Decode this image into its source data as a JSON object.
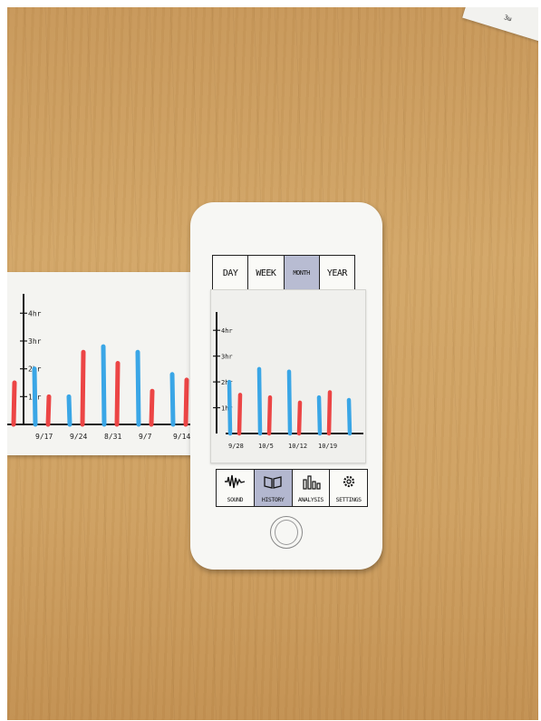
{
  "colors": {
    "series_a": "#3aa6e6",
    "series_b": "#ec4545",
    "ink": "#1a1a1a"
  },
  "corner_scrap": {
    "text": "3ω"
  },
  "phone": {
    "tabs": [
      {
        "label": "DAY",
        "active": false
      },
      {
        "label": "WEEK",
        "active": false
      },
      {
        "label": "MONTH",
        "active": true
      },
      {
        "label": "YEAR",
        "active": false
      }
    ],
    "nav": [
      {
        "label": "SOUND",
        "icon": "sound-wave-icon",
        "active": false
      },
      {
        "label": "HISTORY",
        "icon": "book-icon",
        "active": true
      },
      {
        "label": "ANALYSIS",
        "icon": "bar-chart-icon",
        "active": false
      },
      {
        "label": "SETTINGS",
        "icon": "gear-icon",
        "active": false
      }
    ]
  },
  "chart_data": [
    {
      "type": "bar",
      "y_ticks": [
        "1hr",
        "2hr",
        "3hr",
        "4hr"
      ],
      "categories": [
        "",
        "9/17",
        "9/24",
        "8/31",
        "9/7",
        "9/14"
      ],
      "ylim": [
        0,
        4.5
      ],
      "series": [
        {
          "values": [
            0,
            2.0,
            1.0,
            2.8,
            2.6,
            1.8
          ]
        },
        {
          "values": [
            1.5,
            1.0,
            2.6,
            2.2,
            1.2,
            1.6
          ]
        }
      ]
    },
    {
      "type": "bar",
      "y_ticks": [
        "1hr",
        "2hr",
        "3hr",
        "4hr"
      ],
      "categories": [
        "9/28",
        "10/5",
        "10/12",
        "10/19",
        ""
      ],
      "ylim": [
        0,
        4.5
      ],
      "series": [
        {
          "values": [
            2.0,
            2.5,
            2.4,
            1.4,
            1.3
          ]
        },
        {
          "values": [
            1.5,
            1.4,
            1.2,
            1.6,
            0
          ]
        }
      ]
    }
  ]
}
